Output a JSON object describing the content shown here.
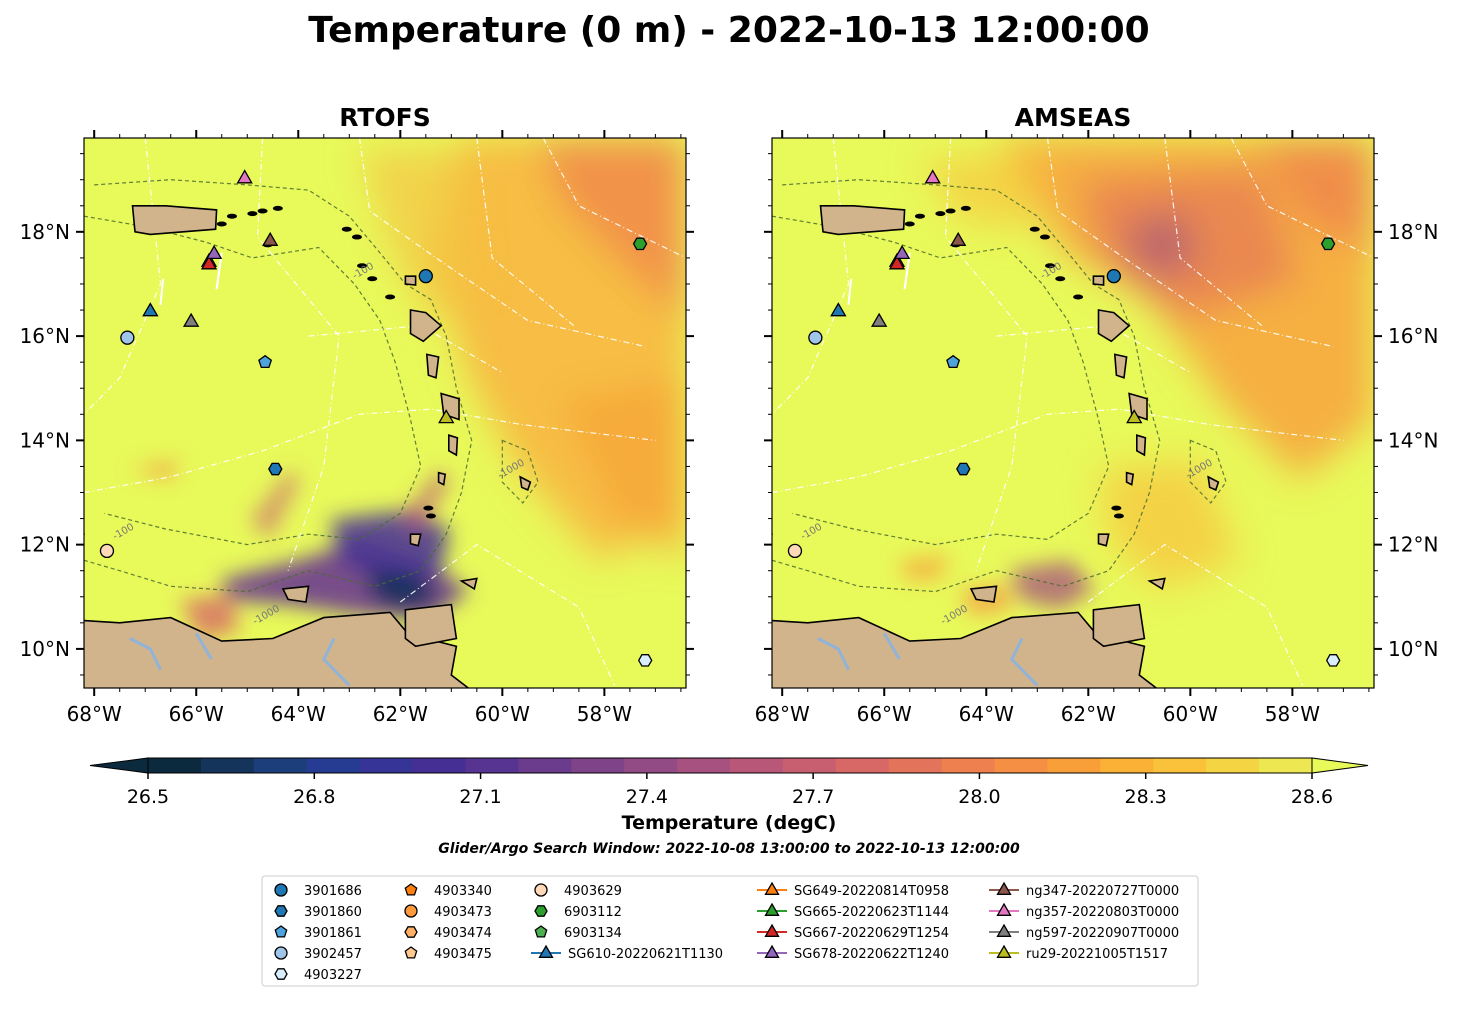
{
  "title": "Temperature (0 m) - 2022-10-13 12:00:00",
  "panels": [
    {
      "title": "RTOFS",
      "warm_patches": "rtofs"
    },
    {
      "title": "AMSEAS",
      "warm_patches": "amseas"
    }
  ],
  "axes": {
    "x_ticks": [
      "68°W",
      "66°W",
      "64°W",
      "62°W",
      "60°W",
      "58°W"
    ],
    "y_ticks": [
      "18°N",
      "16°N",
      "14°N",
      "12°N",
      "10°N"
    ],
    "x_values": [
      -68,
      -66,
      -64,
      -62,
      -60,
      -58
    ],
    "y_values": [
      18,
      16,
      14,
      12,
      10
    ],
    "xlim": [
      -68.2,
      -56.4
    ],
    "ylim": [
      9.25,
      19.8
    ]
  },
  "colorbar": {
    "label": "Temperature (degC)",
    "ticks": [
      "26.5",
      "26.8",
      "27.1",
      "27.4",
      "27.7",
      "28.0",
      "28.3",
      "28.6"
    ],
    "tick_values": [
      26.5,
      26.8,
      27.1,
      27.4,
      27.7,
      28.0,
      28.3,
      28.6
    ],
    "range": [
      26.5,
      28.6
    ],
    "colors": [
      "#0b2a3e",
      "#14345c",
      "#1c3f7c",
      "#263c92",
      "#363497",
      "#452f95",
      "#573491",
      "#6b3b8e",
      "#7f438a",
      "#934b85",
      "#a6517f",
      "#b85778",
      "#c85f70",
      "#d76866",
      "#e3735b",
      "#ee804f",
      "#f58f43",
      "#f99f3a",
      "#fbb036",
      "#f9c23a",
      "#f4d443",
      "#ede851"
    ],
    "extend": "both"
  },
  "search_window": "Glider/Argo Search Window: 2022-10-08 13:00:00 to 2022-10-13 12:00:00",
  "colors": {
    "land": "#d2b48c",
    "sea_warm": "#e8f95a",
    "rivers": "#8fb3d9"
  },
  "legend": {
    "columns": [
      [
        {
          "label": "3901686",
          "marker": "circle",
          "color": "#1f77b4"
        },
        {
          "label": "3901860",
          "marker": "hexagon",
          "color": "#1f77b4"
        },
        {
          "label": "3901861",
          "marker": "pentagon",
          "color": "#4ca3dd"
        },
        {
          "label": "3902457",
          "marker": "circle",
          "color": "#9fc5e8"
        },
        {
          "label": "4903227",
          "marker": "hexagon",
          "color": "#d8eefc"
        }
      ],
      [
        {
          "label": "4903340",
          "marker": "pentagon",
          "color": "#ff7f0e"
        },
        {
          "label": "4903473",
          "marker": "circle",
          "color": "#ff9a3c"
        },
        {
          "label": "4903474",
          "marker": "hexagon",
          "color": "#ffb066"
        },
        {
          "label": "4903475",
          "marker": "pentagon",
          "color": "#ffc98f"
        }
      ],
      [
        {
          "label": "4903629",
          "marker": "circle",
          "color": "#ffd9b8"
        },
        {
          "label": "6903112",
          "marker": "hexagon",
          "color": "#2ca02c"
        },
        {
          "label": "6903134",
          "marker": "pentagon",
          "color": "#4caf50"
        },
        {
          "label": "SG610-20220621T1130",
          "marker": "triangle",
          "color": "#1f77b4",
          "line": true
        }
      ],
      [
        {
          "label": "SG649-20220814T0958",
          "marker": "triangle",
          "color": "#ff7f0e",
          "line": true
        },
        {
          "label": "SG665-20220623T1144",
          "marker": "triangle",
          "color": "#2ca02c",
          "line": true
        },
        {
          "label": "SG667-20220629T1254",
          "marker": "triangle",
          "color": "#d62728",
          "line": true
        },
        {
          "label": "SG678-20220622T1240",
          "marker": "triangle",
          "color": "#9467bd",
          "line": true
        }
      ],
      [
        {
          "label": "ng347-20220727T0000",
          "marker": "triangle",
          "color": "#8c564b",
          "line": true
        },
        {
          "label": "ng357-20220803T0000",
          "marker": "triangle",
          "color": "#e377c2",
          "line": true
        },
        {
          "label": "ng597-20220907T0000",
          "marker": "triangle",
          "color": "#7f7f7f",
          "line": true
        },
        {
          "label": "ru29-20221005T1517",
          "marker": "triangle",
          "color": "#bcbd22",
          "line": true
        }
      ]
    ]
  },
  "chart_data": {
    "type": "heatmap",
    "title": "Temperature (0 m) - 2022-10-13 12:00:00",
    "subplots": [
      "RTOFS",
      "AMSEAS"
    ],
    "xlabel": "",
    "ylabel": "",
    "xlim": [
      -68.2,
      -56.4
    ],
    "ylim": [
      9.25,
      19.8
    ],
    "colorbar_label": "Temperature (degC)",
    "colorbar_range": [
      26.5,
      28.6
    ],
    "markers": [
      {
        "name": "3901686",
        "lon": -61.5,
        "lat": 17.15
      },
      {
        "name": "3901860",
        "lon": -64.45,
        "lat": 13.45
      },
      {
        "name": "3901861",
        "lon": -64.65,
        "lat": 15.5
      },
      {
        "name": "3902457",
        "lon": -67.35,
        "lat": 15.97
      },
      {
        "name": "4903227",
        "lon": -57.2,
        "lat": 9.78
      },
      {
        "name": "4903629",
        "lon": -67.75,
        "lat": 11.88
      },
      {
        "name": "6903112",
        "lon": -57.3,
        "lat": 17.77
      },
      {
        "name": "SG610-20220621T1130",
        "lon": -66.9,
        "lat": 16.5
      },
      {
        "name": "SG649-20220814T0958",
        "lon": -65.75,
        "lat": 17.45
      },
      {
        "name": "SG667-20220629T1254",
        "lon": -65.75,
        "lat": 17.4
      },
      {
        "name": "SG678-20220622T1240",
        "lon": -65.65,
        "lat": 17.6
      },
      {
        "name": "ng347-20220727T0000",
        "lon": -64.55,
        "lat": 17.85
      },
      {
        "name": "ng357-20220803T0000",
        "lon": -65.05,
        "lat": 19.05
      },
      {
        "name": "ng597-20220907T0000",
        "lon": -66.1,
        "lat": 16.3
      },
      {
        "name": "ru29-20221005T1517",
        "lon": -61.1,
        "lat": 14.45
      }
    ],
    "contour_labels": [
      "-100",
      "-1000"
    ],
    "contour_label_positions": [
      {
        "text": "-100",
        "lon": -62.7,
        "lat": 17.2
      },
      {
        "text": "-100",
        "lon": -67.4,
        "lat": 12.2
      },
      {
        "text": "-1000",
        "lon": -59.8,
        "lat": 13.4
      },
      {
        "text": "-1000",
        "lon": -64.6,
        "lat": 10.6
      }
    ]
  }
}
